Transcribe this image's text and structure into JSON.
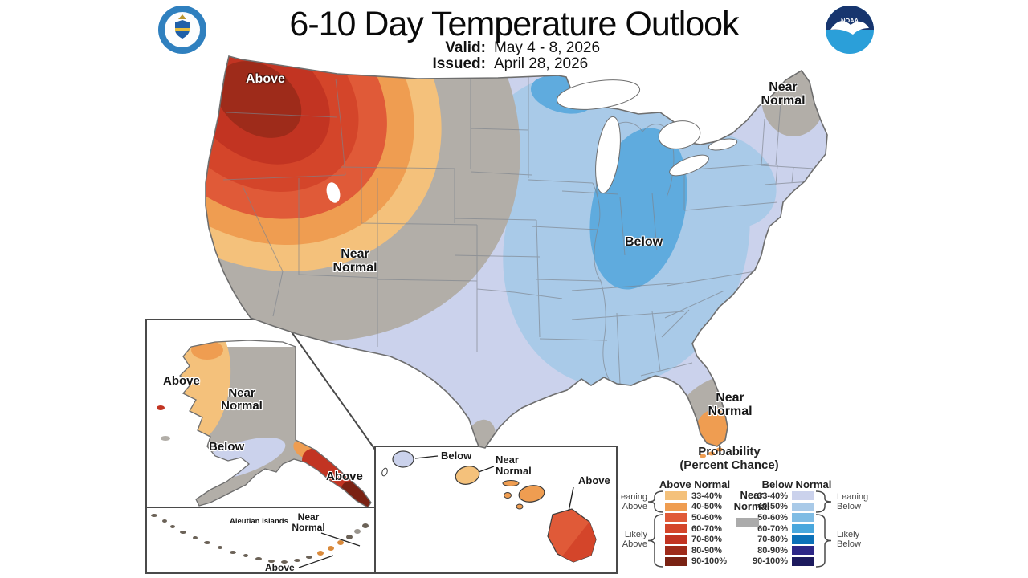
{
  "header": {
    "title": "6-10 Day Temperature Outlook",
    "valid_label": "Valid:",
    "valid_value": "May 4 - 8, 2026",
    "issued_label": "Issued:",
    "issued_value": "April 28, 2026",
    "noaa_text": "NOAA"
  },
  "map_labels": {
    "northwest_above": "Above",
    "central_near_normal": "Near Normal",
    "midwest_below": "Below",
    "maine_near_normal": "Near Normal",
    "florida_near_normal": "Near Normal"
  },
  "alaska_inset": {
    "west_above": "Above",
    "near_normal": "Near Normal",
    "south_below": "Below",
    "southeast_above": "Above"
  },
  "aleutian_inset": {
    "title": "Aleutian Islands",
    "near_normal": "Near Normal",
    "above": "Above"
  },
  "hawaii_inset": {
    "below": "Below",
    "near_normal": "Near Normal",
    "above": "Above"
  },
  "legend": {
    "title_line1": "Probability",
    "title_line2": "(Percent Chance)",
    "above_header": "Above Normal",
    "below_header": "Below Normal",
    "near_normal_label": "Near Normal",
    "near_normal_color": "#ABABAB",
    "ranges": [
      "33-40%",
      "40-50%",
      "50-60%",
      "60-70%",
      "70-80%",
      "80-90%",
      "90-100%"
    ],
    "above_colors": [
      "#F4C17B",
      "#EF9D51",
      "#E05A38",
      "#D4452A",
      "#C23422",
      "#9E2B1A",
      "#7A2213"
    ],
    "below_colors": [
      "#CBD2EC",
      "#A9CAE8",
      "#7FBCE4",
      "#49A7DD",
      "#0C71B8",
      "#2D2787",
      "#1D1A5E"
    ],
    "brace_labels": {
      "leaning_above": "Leaning Above",
      "likely_above": "Likely Above",
      "leaning_below": "Leaning Below",
      "likely_below": "Likely Below"
    }
  },
  "map_colors": {
    "near_normal_band": "#B2AEA8",
    "below_50_60_band": "#5FABDE",
    "coastline": "#6E6E6E",
    "state_border": "#7D828C",
    "inset_frame": "#4A4A4A",
    "island_outline": "#3C3C3C",
    "pointer_line": "#222222",
    "aleutian_island": "#6B6257",
    "aleutian_island_orange": "#D98A3C",
    "aleutian_island_gray": "#9A958E"
  }
}
